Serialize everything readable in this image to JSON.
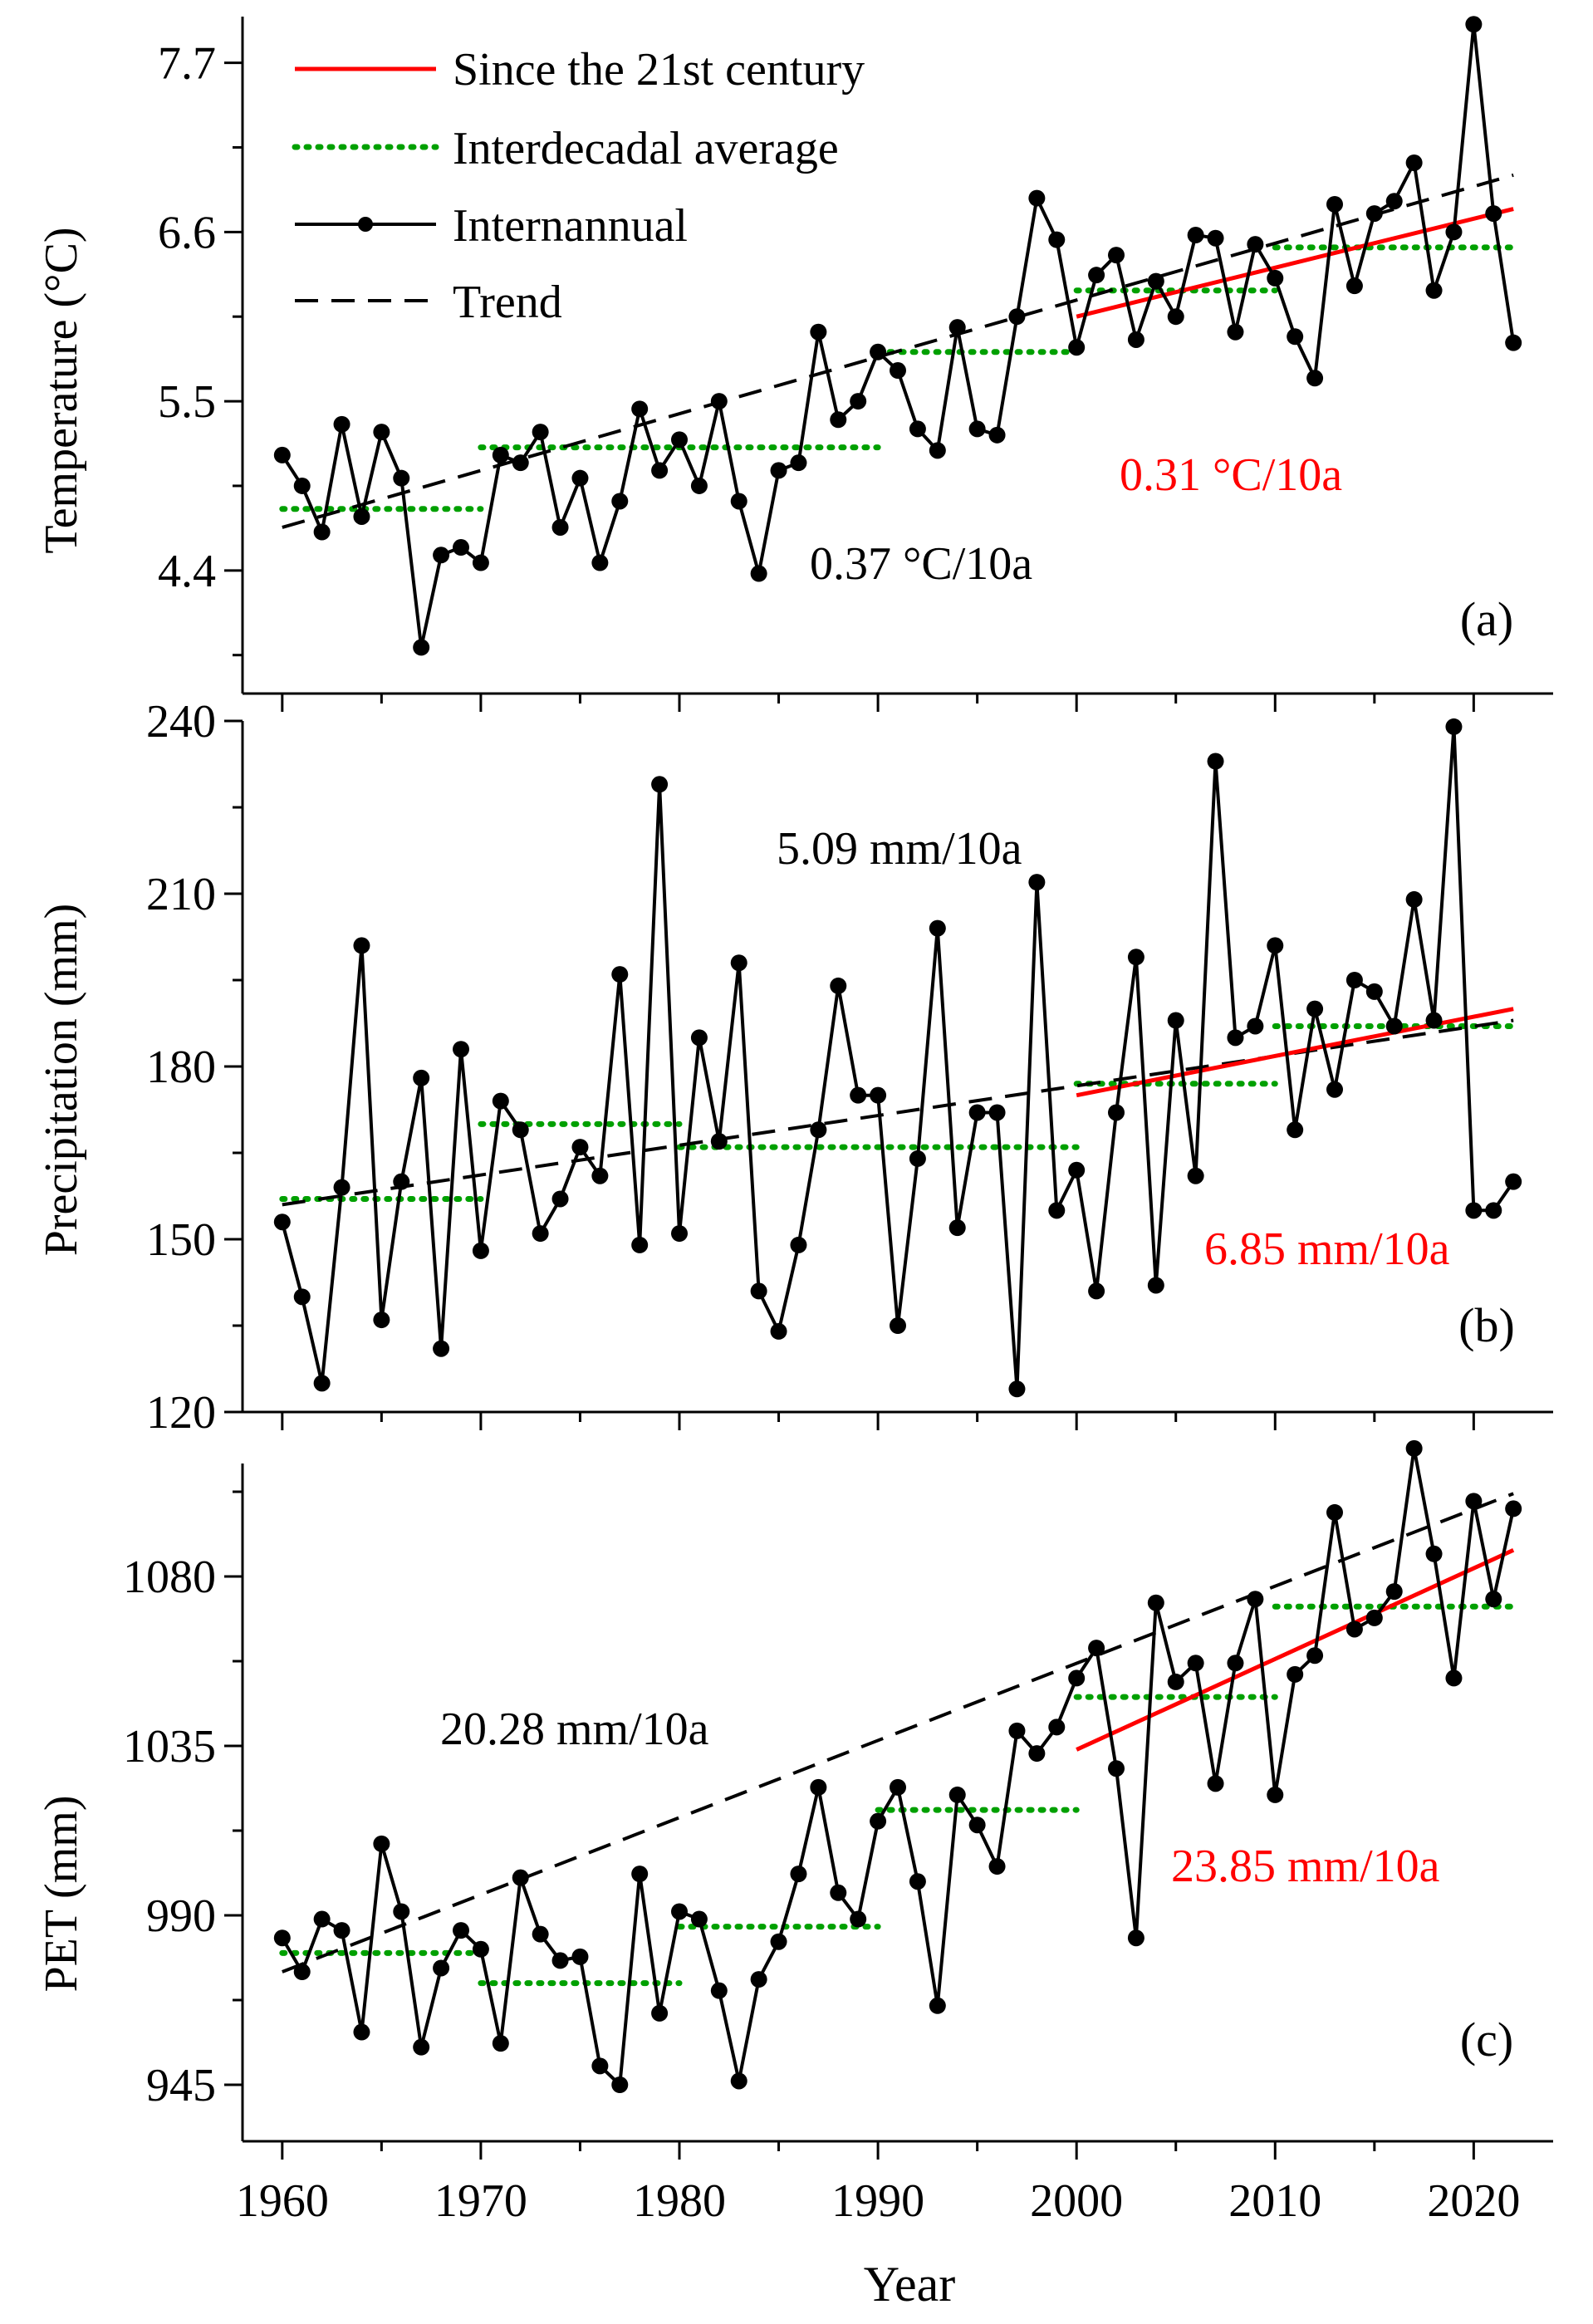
{
  "colors": {
    "internannual": "#000000",
    "trend": "#000000",
    "since21": "#ff0000",
    "interdecadal": "#00a000",
    "axis": "#000000"
  },
  "legend": {
    "position": "top-left of panel (a)",
    "items": [
      {
        "key": "since21",
        "label": "Since the 21st century",
        "style": "solid-red"
      },
      {
        "key": "interdecadal",
        "label": "Interdecadal average",
        "style": "dotted-green"
      },
      {
        "key": "internannual",
        "label": "Internannual",
        "style": "line-dots-black"
      },
      {
        "key": "trend",
        "label": "Trend",
        "style": "dashed-black"
      }
    ]
  },
  "x_axis": {
    "label": "Year",
    "range": [
      1958,
      2024
    ],
    "ticks": [
      "1960",
      "1970",
      "1980",
      "1990",
      "2000",
      "2010",
      "2020"
    ]
  },
  "chart_data": [
    {
      "type": "line",
      "panel_label": "(a)",
      "ylabel": "Temperature (°C)",
      "ylim": [
        3.6,
        8.0
      ],
      "yticks": [
        "4.4",
        "5.5",
        "6.6",
        "7.7"
      ],
      "start_year": 1960,
      "values": [
        5.15,
        4.95,
        4.65,
        5.35,
        4.75,
        5.3,
        5.0,
        3.9,
        4.5,
        4.55,
        4.45,
        5.15,
        5.1,
        5.3,
        4.68,
        5.0,
        4.45,
        4.85,
        5.45,
        5.05,
        5.25,
        4.95,
        5.5,
        4.85,
        4.38,
        5.05,
        5.1,
        5.95,
        5.38,
        5.5,
        5.82,
        5.7,
        5.32,
        5.18,
        5.98,
        5.32,
        5.28,
        6.05,
        6.82,
        6.55,
        5.85,
        6.32,
        6.45,
        5.9,
        6.28,
        6.05,
        6.58,
        6.56,
        5.95,
        6.52,
        6.3,
        5.92,
        5.65,
        6.78,
        6.25,
        6.72,
        6.8,
        7.05,
        6.22,
        6.6,
        7.95,
        6.72,
        5.88
      ],
      "trend": {
        "x": [
          1960,
          2022
        ],
        "y": [
          4.68,
          6.97
        ],
        "label": "0.37 °C/10a"
      },
      "since21": {
        "x": [
          2000,
          2022
        ],
        "y": [
          6.05,
          6.75
        ],
        "label": "0.31 °C/10a"
      },
      "interdecadal": [
        {
          "x": [
            1960,
            1970
          ],
          "y": 4.8
        },
        {
          "x": [
            1970,
            1990
          ],
          "y": 5.2
        },
        {
          "x": [
            1990,
            2000
          ],
          "y": 5.82
        },
        {
          "x": [
            2000,
            2010
          ],
          "y": 6.22
        },
        {
          "x": [
            2010,
            2022
          ],
          "y": 6.5
        }
      ]
    },
    {
      "type": "line",
      "panel_label": "(b)",
      "ylabel": "Precipitation (mm)",
      "ylim": [
        120,
        240
      ],
      "yticks": [
        "120",
        "150",
        "180",
        "210",
        "240"
      ],
      "start_year": 1960,
      "values": [
        153,
        140,
        125,
        159,
        201,
        136,
        160,
        178,
        131,
        183,
        148,
        174,
        169,
        151,
        157,
        166,
        161,
        196,
        149,
        229,
        151,
        185,
        167,
        198,
        141,
        134,
        149,
        169,
        194,
        175,
        175,
        135,
        164,
        204,
        152,
        172,
        172,
        124,
        212,
        155,
        162,
        141,
        172,
        199,
        142,
        188,
        161,
        233,
        185,
        187,
        201,
        169,
        190,
        176,
        195,
        193,
        187,
        209,
        188,
        239,
        155,
        155,
        160
      ],
      "trend": {
        "x": [
          1960,
          2022
        ],
        "y": [
          156,
          188
        ],
        "label": "5.09 mm/10a"
      },
      "since21": {
        "x": [
          2000,
          2022
        ],
        "y": [
          175,
          190
        ],
        "label": "6.85 mm/10a"
      },
      "interdecadal": [
        {
          "x": [
            1960,
            1970
          ],
          "y": 157
        },
        {
          "x": [
            1970,
            1980
          ],
          "y": 170
        },
        {
          "x": [
            1980,
            2000
          ],
          "y": 166
        },
        {
          "x": [
            2000,
            2010
          ],
          "y": 177
        },
        {
          "x": [
            2010,
            2022
          ],
          "y": 187
        }
      ]
    },
    {
      "type": "line",
      "panel_label": "(c)",
      "ylabel": "PET (mm)",
      "ylim": [
        930,
        1110
      ],
      "yticks": [
        "945",
        "990",
        "1035",
        "1080"
      ],
      "start_year": 1960,
      "values": [
        984,
        975,
        989,
        986,
        959,
        1009,
        991,
        955,
        976,
        986,
        981,
        956,
        1000,
        985,
        978,
        979,
        950,
        945,
        1001,
        964,
        991,
        989,
        970,
        946,
        973,
        983,
        1001,
        1024,
        996,
        989,
        1015,
        1024,
        999,
        966,
        1022,
        1014,
        1003,
        1039,
        1033,
        1040,
        1053,
        1061,
        1029,
        984,
        1073,
        1052,
        1057,
        1025,
        1057,
        1074,
        1022,
        1054,
        1059,
        1097,
        1066,
        1069,
        1076,
        1114,
        1086,
        1053,
        1100,
        1074,
        1098
      ],
      "trend": {
        "x": [
          1960,
          2022
        ],
        "y": [
          975,
          1102
        ],
        "label": "20.28 mm/10a"
      },
      "since21": {
        "x": [
          2000,
          2022
        ],
        "y": [
          1034,
          1087
        ],
        "label": "23.85 mm/10a"
      },
      "interdecadal": [
        {
          "x": [
            1960,
            1970
          ],
          "y": 980
        },
        {
          "x": [
            1970,
            1980
          ],
          "y": 972
        },
        {
          "x": [
            1980,
            1990
          ],
          "y": 987
        },
        {
          "x": [
            1990,
            2000
          ],
          "y": 1018
        },
        {
          "x": [
            2000,
            2010
          ],
          "y": 1048
        },
        {
          "x": [
            2010,
            2022
          ],
          "y": 1072
        }
      ]
    }
  ]
}
